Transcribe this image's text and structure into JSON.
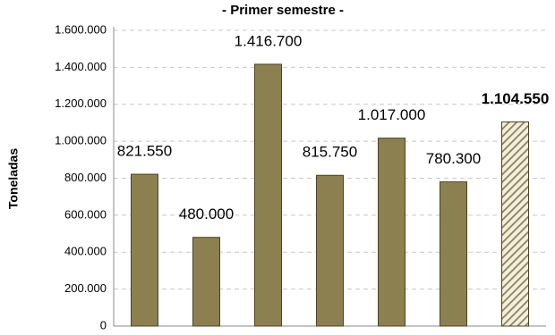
{
  "chart_data": {
    "type": "bar",
    "title": "- Primer semestre -",
    "y_label": "Toneladas",
    "categories": [
      null,
      null,
      null,
      null,
      null,
      null,
      null
    ],
    "values": [
      821550,
      480000,
      1416700,
      815750,
      1017000,
      780300,
      1104550
    ],
    "value_labels": [
      "821.550",
      "480.000",
      "1.416.700",
      "815.750",
      "1.017.000",
      "780.300",
      "1.104.550"
    ],
    "bar_styles": [
      "solid",
      "solid",
      "solid",
      "solid",
      "solid",
      "solid",
      "hatched"
    ],
    "color": "#8c8050",
    "ylim": [
      0,
      1600000
    ],
    "yticks": [
      0,
      {
        "value": 200000,
        "label": "200.000"
      },
      {
        "value": 400000,
        "label": "400.000"
      },
      {
        "value": 600000,
        "label": "600.000"
      },
      {
        "value": 800000,
        "label": "800.000"
      },
      {
        "value": 1000000,
        "label": "1.000.000"
      },
      {
        "value": 1200000,
        "label": "1.200.000"
      },
      {
        "value": 1400000,
        "label": "1.400.000"
      },
      {
        "value": 1600000,
        "label": "1.600.000"
      }
    ],
    "grid": true
  }
}
